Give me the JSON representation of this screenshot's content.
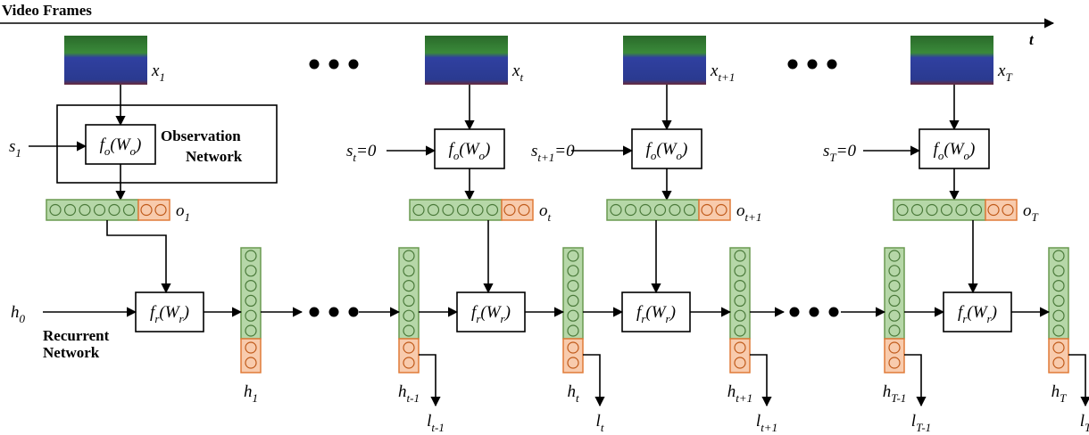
{
  "axis": {
    "title": "Video Frames",
    "label": "t"
  },
  "frames": [
    [
      {
        "text": "x",
        "sub": "1"
      }
    ],
    [
      {
        "text": "x",
        "sub": "t"
      }
    ],
    [
      {
        "text": "x",
        "sub": "t+1"
      }
    ],
    [
      {
        "text": "x",
        "sub": "T"
      }
    ]
  ],
  "inputs": [
    [
      {
        "text": "s",
        "sub": "1"
      }
    ],
    [
      {
        "text": "s",
        "sub": "t"
      },
      {
        "text": "=0"
      }
    ],
    [
      {
        "text": "s",
        "sub": "t+1"
      },
      {
        "text": "=0"
      }
    ],
    [
      {
        "text": "s",
        "sub": "T"
      },
      {
        "text": "=0"
      }
    ]
  ],
  "observation_title": [
    "Observation",
    "Network"
  ],
  "observation_nodes": [
    [
      {
        "text": "f",
        "sub": "o"
      },
      {
        "text": "(W",
        "sub": "o"
      },
      {
        "text": ")"
      }
    ],
    [
      {
        "text": "f",
        "sub": "o"
      },
      {
        "text": "(W",
        "sub": "o"
      },
      {
        "text": ")"
      }
    ],
    [
      {
        "text": "f",
        "sub": "o"
      },
      {
        "text": "(W",
        "sub": "o"
      },
      {
        "text": ")"
      }
    ],
    [
      {
        "text": "f",
        "sub": "o"
      },
      {
        "text": "(W",
        "sub": "o"
      },
      {
        "text": ")"
      }
    ]
  ],
  "observations": [
    [
      {
        "text": "o",
        "sub": "1"
      }
    ],
    [
      {
        "text": "o",
        "sub": "t"
      }
    ],
    [
      {
        "text": "o",
        "sub": "t+1"
      }
    ],
    [
      {
        "text": "o",
        "sub": "T"
      }
    ]
  ],
  "initial_state": [
    {
      "text": "h",
      "sub": "0"
    }
  ],
  "recurrent_title": [
    "Recurrent",
    "Network"
  ],
  "recurrent_nodes": [
    [
      {
        "text": "f",
        "sub": "r"
      },
      {
        "text": "(W",
        "sub": "r"
      },
      {
        "text": ")"
      }
    ],
    [
      {
        "text": "f",
        "sub": "r"
      },
      {
        "text": "(W",
        "sub": "r"
      },
      {
        "text": ")"
      }
    ],
    [
      {
        "text": "f",
        "sub": "r"
      },
      {
        "text": "(W",
        "sub": "r"
      },
      {
        "text": ")"
      }
    ],
    [
      {
        "text": "f",
        "sub": "r"
      },
      {
        "text": "(W",
        "sub": "r"
      },
      {
        "text": ")"
      }
    ]
  ],
  "hidden_states": [
    [
      {
        "text": "h",
        "sub": "1"
      }
    ],
    [
      {
        "text": "h",
        "sub": "t-1"
      }
    ],
    [
      {
        "text": "h",
        "sub": "t"
      }
    ],
    [
      {
        "text": "h",
        "sub": "t+1"
      }
    ],
    [
      {
        "text": "h",
        "sub": "T-1"
      }
    ],
    [
      {
        "text": "h",
        "sub": "T"
      }
    ]
  ],
  "outputs": [
    [
      {
        "text": "l",
        "sub": "t-1"
      }
    ],
    [
      {
        "text": "l",
        "sub": "t"
      }
    ],
    [
      {
        "text": "l",
        "sub": "t+1"
      }
    ],
    [
      {
        "text": "l",
        "sub": "T-1"
      }
    ],
    [
      {
        "text": "l",
        "sub": "T"
      }
    ]
  ]
}
